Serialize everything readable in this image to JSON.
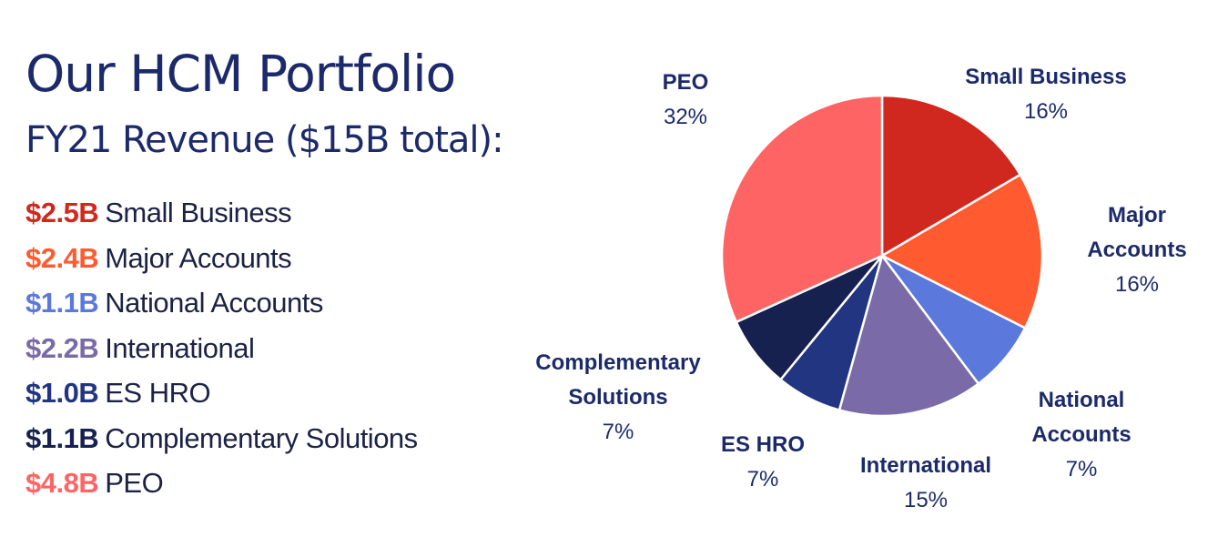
{
  "title": "Our HCM Portfolio",
  "subtitle": "FY21 Revenue ($15B total):",
  "legend": [
    {
      "amount": "$2.5B",
      "label": "Small Business",
      "color": "#d0281e"
    },
    {
      "amount": "$2.4B",
      "label": "Major Accounts",
      "color": "#ff5a30"
    },
    {
      "amount": "$1.1B",
      "label": "National Accounts",
      "color": "#5b78dc"
    },
    {
      "amount": "$2.2B",
      "label": "International",
      "color": "#7a6ba8"
    },
    {
      "amount": "$1.0B",
      "label": "ES HRO",
      "color": "#213580"
    },
    {
      "amount": "$1.1B",
      "label": "Complementary Solutions",
      "color": "#16214f"
    },
    {
      "amount": "$4.8B",
      "label": "PEO",
      "color": "#ff6464"
    }
  ],
  "chart_data": {
    "type": "pie",
    "start_angle": "top, clockwise",
    "slices": [
      {
        "name_lines": [
          "Small Business"
        ],
        "pct_label": "16%",
        "value": 2.5,
        "color": "#d0281e"
      },
      {
        "name_lines": [
          "Major",
          "Accounts"
        ],
        "pct_label": "16%",
        "value": 2.4,
        "color": "#ff5a30"
      },
      {
        "name_lines": [
          "National",
          "Accounts"
        ],
        "pct_label": "7%",
        "value": 1.1,
        "color": "#5b78dc"
      },
      {
        "name_lines": [
          "International"
        ],
        "pct_label": "15%",
        "value": 2.2,
        "color": "#7a6ba8"
      },
      {
        "name_lines": [
          "ES HRO"
        ],
        "pct_label": "7%",
        "value": 1.0,
        "color": "#213580"
      },
      {
        "name_lines": [
          "Complementary",
          "Solutions"
        ],
        "pct_label": "7%",
        "value": 1.1,
        "color": "#16214f"
      },
      {
        "name_lines": [
          "PEO"
        ],
        "pct_label": "32%",
        "value": 4.8,
        "color": "#ff6464"
      }
    ]
  }
}
